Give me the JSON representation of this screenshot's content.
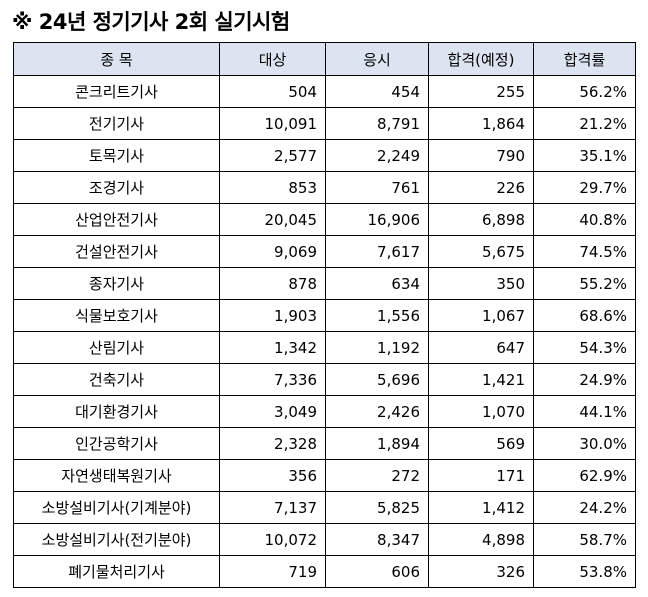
{
  "title": "※ 24년 정기기사 2회 실기시험",
  "colors": {
    "header_bg": "#dde4f1",
    "border": "#000000"
  },
  "columns": [
    "종 목",
    "대상",
    "응시",
    "합격(예정)",
    "합격률"
  ],
  "rows": [
    [
      "콘크리트기사",
      "504",
      "454",
      "255",
      "56.2%"
    ],
    [
      "전기기사",
      "10,091",
      "8,791",
      "1,864",
      "21.2%"
    ],
    [
      "토목기사",
      "2,577",
      "2,249",
      "790",
      "35.1%"
    ],
    [
      "조경기사",
      "853",
      "761",
      "226",
      "29.7%"
    ],
    [
      "산업안전기사",
      "20,045",
      "16,906",
      "6,898",
      "40.8%"
    ],
    [
      "건설안전기사",
      "9,069",
      "7,617",
      "5,675",
      "74.5%"
    ],
    [
      "종자기사",
      "878",
      "634",
      "350",
      "55.2%"
    ],
    [
      "식물보호기사",
      "1,903",
      "1,556",
      "1,067",
      "68.6%"
    ],
    [
      "산림기사",
      "1,342",
      "1,192",
      "647",
      "54.3%"
    ],
    [
      "건축기사",
      "7,336",
      "5,696",
      "1,421",
      "24.9%"
    ],
    [
      "대기환경기사",
      "3,049",
      "2,426",
      "1,070",
      "44.1%"
    ],
    [
      "인간공학기사",
      "2,328",
      "1,894",
      "569",
      "30.0%"
    ],
    [
      "자연생태복원기사",
      "356",
      "272",
      "171",
      "62.9%"
    ],
    [
      "소방설비기사(기계분야)",
      "7,137",
      "5,825",
      "1,412",
      "24.2%"
    ],
    [
      "소방설비기사(전기분야)",
      "10,072",
      "8,347",
      "4,898",
      "58.7%"
    ],
    [
      "폐기물처리기사",
      "719",
      "606",
      "326",
      "53.8%"
    ]
  ]
}
